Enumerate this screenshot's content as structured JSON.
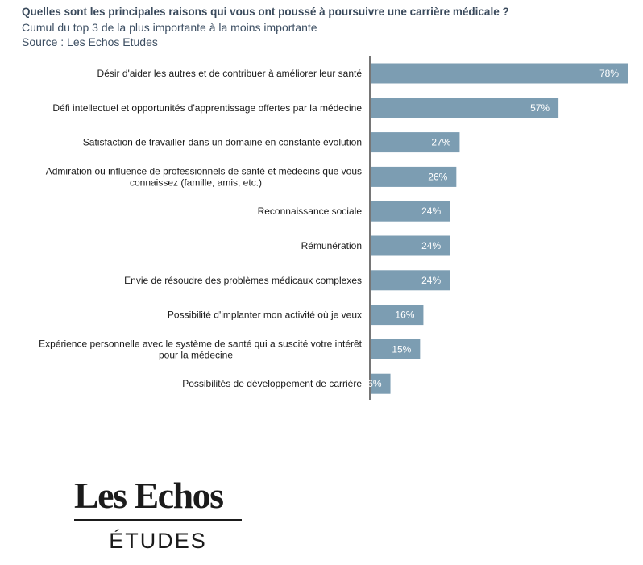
{
  "header": {
    "title": "Quelles sont les principales raisons qui vous ont poussé à poursuivre une carrière médicale ?",
    "subtitle": "Cumul du top 3 de la plus importante à la moins importante",
    "source": "Source : Les Echos Etudes"
  },
  "logo": {
    "brand": "Les Echos",
    "sub": "ÉTUDES"
  },
  "chart_data": {
    "type": "bar",
    "orientation": "horizontal",
    "colors": {
      "bar": "#7c9db2",
      "axis": "#1a1a1a"
    },
    "categories": [
      [
        "Désir d'aider les autres et de contribuer à améliorer leur santé"
      ],
      [
        "Défi intellectuel et opportunités d'apprentissage offertes par la médecine"
      ],
      [
        "Satisfaction de travailler dans un domaine en constante évolution"
      ],
      [
        "Admiration ou influence de professionnels de santé et médecins que vous",
        "connaissez (famille, amis, etc.)"
      ],
      [
        "Reconnaissance sociale"
      ],
      [
        "Rémunération"
      ],
      [
        "Envie de résoudre des problèmes médicaux complexes"
      ],
      [
        "Possibilité d'implanter mon activité où je veux"
      ],
      [
        "Expérience personnelle avec le système de santé qui a suscité votre intérêt",
        "pour la médecine"
      ],
      [
        "Possibilités de développement de carrière"
      ]
    ],
    "values": [
      78,
      57,
      27,
      26,
      24,
      24,
      24,
      16,
      15,
      6
    ],
    "value_labels": [
      "78%",
      "57%",
      "27%",
      "26%",
      "24%",
      "24%",
      "24%",
      "16%",
      "15%",
      "6%"
    ],
    "xlim": [
      0,
      78
    ]
  }
}
